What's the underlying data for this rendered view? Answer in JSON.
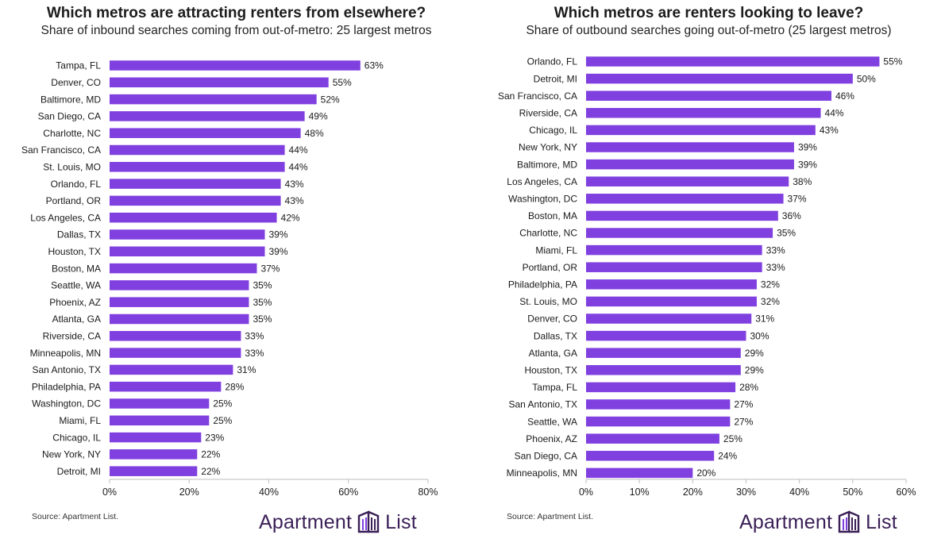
{
  "colors": {
    "bar": "#8040e0",
    "axis": "#bdbdbd",
    "logo": "#3a1f56"
  },
  "chart_data": [
    {
      "type": "bar",
      "orientation": "horizontal",
      "title": "Which metros are attracting renters from elsewhere?",
      "subtitle": "Share of inbound searches coming from out-of-metro: 25 largest metros",
      "categories": [
        "Tampa, FL",
        "Denver, CO",
        "Baltimore, MD",
        "San Diego, CA",
        "Charlotte, NC",
        "San Francisco, CA",
        "St. Louis, MO",
        "Orlando, FL",
        "Portland, OR",
        "Los Angeles, CA",
        "Dallas, TX",
        "Houston, TX",
        "Boston, MA",
        "Seattle, WA",
        "Phoenix, AZ",
        "Atlanta, GA",
        "Riverside, CA",
        "Minneapolis, MN",
        "San Antonio, TX",
        "Philadelphia, PA",
        "Washington, DC",
        "Miami, FL",
        "Chicago, IL",
        "New York, NY",
        "Detroit, MI"
      ],
      "values": [
        63,
        55,
        52,
        49,
        48,
        44,
        44,
        43,
        43,
        42,
        39,
        39,
        37,
        35,
        35,
        35,
        33,
        33,
        31,
        28,
        25,
        25,
        23,
        22,
        22
      ],
      "value_labels": [
        "63%",
        "55%",
        "52%",
        "49%",
        "48%",
        "44%",
        "44%",
        "43%",
        "43%",
        "42%",
        "39%",
        "39%",
        "37%",
        "35%",
        "35%",
        "35%",
        "33%",
        "33%",
        "31%",
        "28%",
        "25%",
        "25%",
        "23%",
        "22%",
        "22%"
      ],
      "xlim": [
        0,
        80
      ],
      "xticks": [
        0,
        20,
        40,
        60,
        80
      ],
      "xtick_labels": [
        "0%",
        "20%",
        "40%",
        "60%",
        "80%"
      ],
      "grid": false
    },
    {
      "type": "bar",
      "orientation": "horizontal",
      "title": "Which metros are renters looking to leave?",
      "subtitle": "Share of outbound searches going out-of-metro (25 largest metros)",
      "categories": [
        "Orlando, FL",
        "Detroit, MI",
        "San Francisco, CA",
        "Riverside, CA",
        "Chicago, IL",
        "New York, NY",
        "Baltimore, MD",
        "Los Angeles, CA",
        "Washington, DC",
        "Boston, MA",
        "Charlotte, NC",
        "Miami, FL",
        "Portland, OR",
        "Philadelphia, PA",
        "St. Louis, MO",
        "Denver, CO",
        "Dallas, TX",
        "Atlanta, GA",
        "Houston, TX",
        "Tampa, FL",
        "San Antonio, TX",
        "Seattle, WA",
        "Phoenix, AZ",
        "San Diego, CA",
        "Minneapolis, MN"
      ],
      "values": [
        55,
        50,
        46,
        44,
        43,
        39,
        39,
        38,
        37,
        36,
        35,
        33,
        33,
        32,
        32,
        31,
        30,
        29,
        29,
        28,
        27,
        27,
        25,
        24,
        20
      ],
      "value_labels": [
        "55%",
        "50%",
        "46%",
        "44%",
        "43%",
        "39%",
        "39%",
        "38%",
        "37%",
        "36%",
        "35%",
        "33%",
        "33%",
        "32%",
        "32%",
        "31%",
        "30%",
        "29%",
        "29%",
        "28%",
        "27%",
        "27%",
        "25%",
        "24%",
        "20%"
      ],
      "xlim": [
        0,
        60
      ],
      "xticks": [
        0,
        10,
        20,
        30,
        40,
        50,
        60
      ],
      "xtick_labels": [
        "0%",
        "10%",
        "20%",
        "30%",
        "40%",
        "50%",
        "60%"
      ],
      "grid": false
    }
  ],
  "footer": {
    "source": "Source: Apartment List.",
    "logo_left_word": "Apartment",
    "logo_right_word": "List"
  }
}
